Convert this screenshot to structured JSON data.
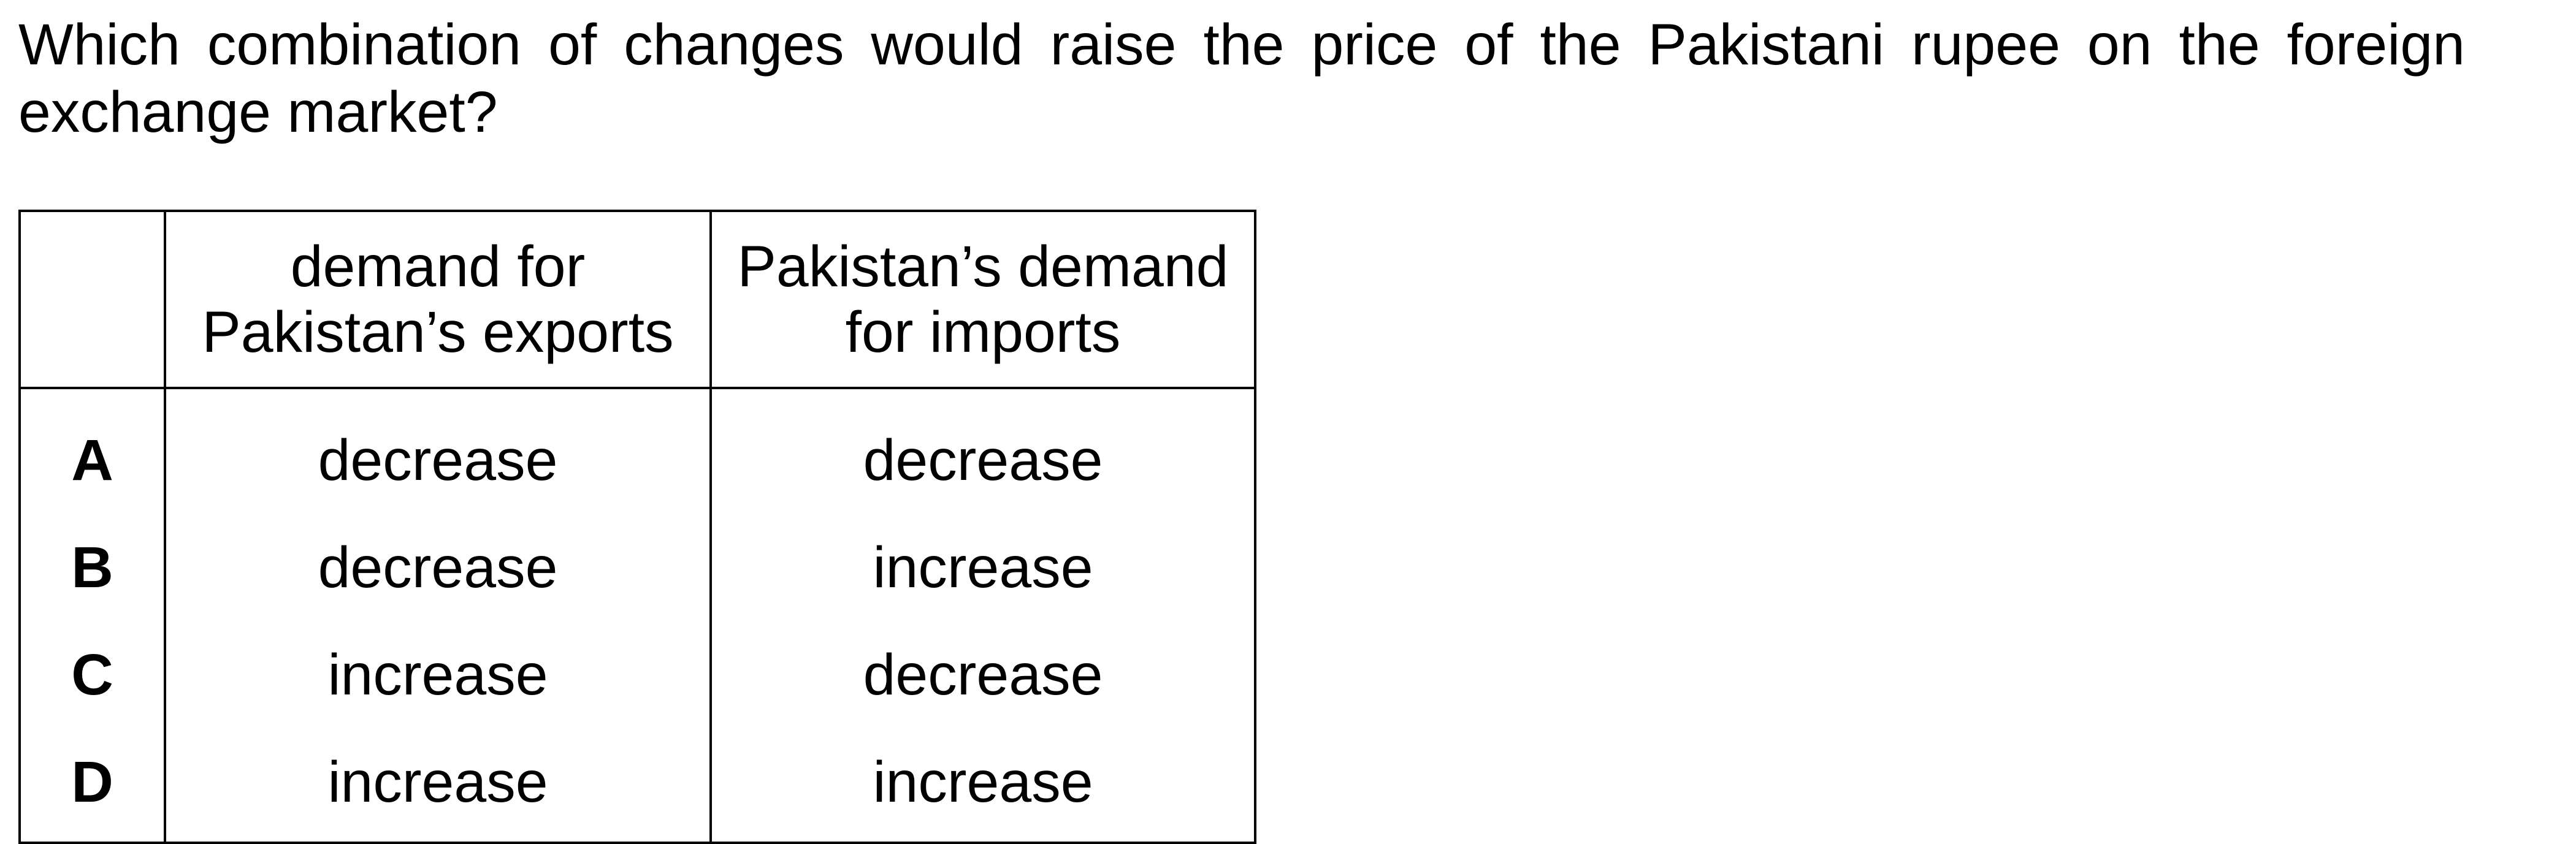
{
  "question": "Which combination of changes would raise the price of the Pakistani rupee on the foreign exchange market?",
  "table": {
    "headers": {
      "letter": "",
      "exports": "demand for Pakistan’s exports",
      "imports": "Pakistan’s demand for imports"
    },
    "rows": [
      {
        "letter": "A",
        "exports": "decrease",
        "imports": "decrease"
      },
      {
        "letter": "B",
        "exports": "decrease",
        "imports": "increase"
      },
      {
        "letter": "C",
        "exports": "increase",
        "imports": "decrease"
      },
      {
        "letter": "D",
        "exports": "increase",
        "imports": "increase"
      }
    ]
  }
}
